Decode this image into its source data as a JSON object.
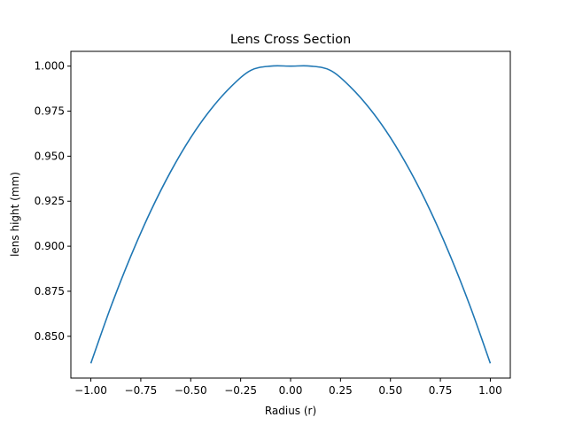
{
  "chart_data": {
    "type": "line",
    "title": "Lens Cross Section",
    "xlabel": "Radius (r)",
    "ylabel": "lens hight (mm)",
    "xlim": [
      -1.1,
      1.1
    ],
    "ylim": [
      0.8268,
      1.0082
    ],
    "x_ticks": [
      -1.0,
      -0.75,
      -0.5,
      -0.25,
      0.0,
      0.25,
      0.5,
      0.75,
      1.0
    ],
    "x_tick_labels": [
      "−1.00",
      "−0.75",
      "−0.50",
      "−0.25",
      "0.00",
      "0.25",
      "0.50",
      "0.75",
      "1.00"
    ],
    "y_ticks": [
      0.85,
      0.875,
      0.9,
      0.925,
      0.95,
      0.975,
      1.0
    ],
    "y_tick_labels": [
      "0.850",
      "0.875",
      "0.900",
      "0.925",
      "0.950",
      "0.975",
      "1.000"
    ],
    "grid": false,
    "series": [
      {
        "color": "#1f77b4",
        "x": [
          -1.0,
          -0.9,
          -0.8,
          -0.7,
          -0.6,
          -0.5,
          -0.4,
          -0.3,
          -0.2,
          -0.1,
          0.0,
          0.1,
          0.2,
          0.3,
          0.4,
          0.5,
          0.6,
          0.7,
          0.8,
          0.9,
          1.0
        ],
        "y": [
          0.835,
          0.8663,
          0.8945,
          0.9196,
          0.9415,
          0.9603,
          0.9759,
          0.9884,
          0.9976,
          1.0,
          1.0,
          1.0,
          0.9976,
          0.9884,
          0.9759,
          0.9603,
          0.9415,
          0.9196,
          0.8945,
          0.8663,
          0.835
        ]
      }
    ]
  }
}
